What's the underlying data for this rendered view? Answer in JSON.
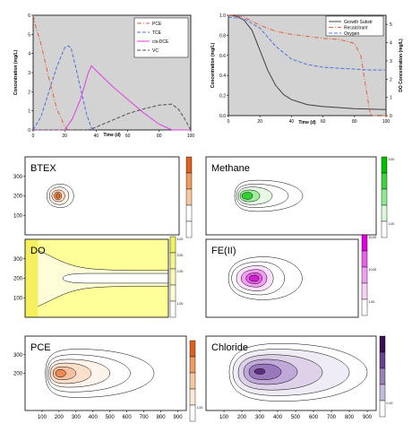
{
  "chart_data": [
    {
      "type": "line",
      "xlabel": "Time (d)",
      "ylabel": "Concentration (mg/L)",
      "xlim": [
        0,
        100
      ],
      "ylim": [
        0,
        6
      ],
      "xticks": [
        "0",
        "20",
        "40",
        "60",
        "80",
        "100"
      ],
      "yticks": [
        "0",
        "1",
        "2",
        "3",
        "4",
        "5",
        "6"
      ],
      "legend_position": "top-right",
      "grid": false,
      "series": [
        {
          "name": "PCE",
          "color": "#e06040",
          "dash": "dashdot",
          "x": [
            0,
            2,
            5,
            10,
            15,
            20,
            22,
            25
          ],
          "y": [
            6.0,
            5.3,
            4.5,
            2.7,
            1.1,
            0.2,
            0.0,
            0.0
          ]
        },
        {
          "name": "TCE",
          "color": "#5070e0",
          "dash": "dashed",
          "x": [
            0,
            5,
            10,
            15,
            20,
            22,
            24,
            27,
            30,
            34,
            37,
            40
          ],
          "y": [
            0.0,
            0.7,
            2.0,
            3.3,
            4.3,
            4.4,
            4.3,
            3.3,
            2.2,
            0.8,
            0.1,
            0.0
          ]
        },
        {
          "name": "cis-DCE",
          "color": "#e040e0",
          "dash": "solid",
          "x": [
            0,
            20,
            25,
            30,
            35,
            37,
            40,
            50,
            60,
            70,
            80,
            88,
            90,
            100
          ],
          "y": [
            0.0,
            0.0,
            0.6,
            1.6,
            3.0,
            3.35,
            3.1,
            2.3,
            1.6,
            0.9,
            0.3,
            0.0,
            0.0,
            0.0
          ]
        },
        {
          "name": "VC",
          "color": "#505050",
          "dash": "dashed",
          "x": [
            0,
            35,
            40,
            50,
            60,
            70,
            80,
            88,
            92,
            96,
            100
          ],
          "y": [
            0.0,
            0.0,
            0.15,
            0.5,
            0.85,
            1.1,
            1.3,
            1.35,
            1.1,
            0.6,
            0.0
          ]
        }
      ]
    },
    {
      "type": "line",
      "xlabel": "Time (d)",
      "ylabel": "Concentration (mg/L)",
      "y2label": "DO Concentration (mg/L)",
      "xlim": [
        0,
        100
      ],
      "ylim": [
        0,
        1.0
      ],
      "y2lim": [
        0,
        5.5
      ],
      "xticks": [
        "0",
        "20",
        "40",
        "60",
        "80",
        "100"
      ],
      "yticks": [
        "0.0",
        "0.2",
        "0.4",
        "0.6",
        "0.8",
        "1.0"
      ],
      "y2ticks": [
        "0",
        "1",
        "2",
        "3",
        "4",
        "5"
      ],
      "legend_position": "top-right",
      "grid": false,
      "series": [
        {
          "name": "Growth Substr",
          "color": "#404040",
          "dash": "solid",
          "x": [
            0,
            5,
            10,
            15,
            20,
            25,
            30,
            35,
            40,
            50,
            60,
            70,
            80,
            90,
            100
          ],
          "y": [
            1.0,
            0.99,
            0.95,
            0.85,
            0.65,
            0.45,
            0.3,
            0.21,
            0.16,
            0.11,
            0.09,
            0.08,
            0.07,
            0.065,
            0.06
          ]
        },
        {
          "name": "Recalcitrant",
          "color": "#e06040",
          "dash": "dashdot",
          "x": [
            0,
            10,
            20,
            30,
            40,
            50,
            60,
            70,
            80,
            84,
            88,
            90,
            92,
            100
          ],
          "y": [
            1.0,
            0.98,
            0.9,
            0.84,
            0.81,
            0.79,
            0.77,
            0.76,
            0.72,
            0.6,
            0.2,
            0.02,
            0.0,
            0.0
          ]
        },
        {
          "name": "Oxygen",
          "color": "#5070e0",
          "dash": "dashed",
          "axis": "right",
          "x": [
            0,
            10,
            20,
            30,
            40,
            50,
            60,
            70,
            80,
            90,
            100
          ],
          "y": [
            5.4,
            5.3,
            4.8,
            3.8,
            3.1,
            2.8,
            2.65,
            2.6,
            2.55,
            2.5,
            2.5
          ]
        }
      ]
    },
    {
      "type": "heatmap",
      "title": "BTEX",
      "colormap": "orange",
      "xlim": [
        0,
        950
      ],
      "ylim": [
        0,
        400
      ],
      "yticks": [
        "100",
        "200",
        "300"
      ],
      "source": [
        200,
        200
      ],
      "contours": [
        {
          "x_range": [
            135,
            300
          ],
          "y_range": [
            140,
            260
          ],
          "level_color": "#ffffff"
        },
        {
          "x_range": [
            150,
            270
          ],
          "y_range": [
            155,
            245
          ],
          "level_color": "#fff1e8"
        },
        {
          "x_range": [
            165,
            245
          ],
          "y_range": [
            170,
            230
          ],
          "level_color": "#ffd8c0"
        },
        {
          "x_range": [
            180,
            225
          ],
          "y_range": [
            180,
            220
          ],
          "level_color": "#f5a070"
        },
        {
          "x_range": [
            190,
            215
          ],
          "y_range": [
            188,
            212
          ],
          "level_color": "#e86a2e"
        }
      ],
      "colorbar_colors": [
        "#e06020",
        "#ee9a60",
        "#f8c8a0",
        "#ffffff",
        "#ffffff"
      ],
      "colorbar_labels": [
        "",
        "",
        "",
        "",
        ""
      ]
    },
    {
      "type": "heatmap",
      "title": "Methane",
      "colormap": "green",
      "xlim": [
        0,
        950
      ],
      "ylim": [
        0,
        400
      ],
      "source": [
        230,
        200
      ],
      "contours": [
        {
          "x_range": [
            160,
            540
          ],
          "y_range": [
            120,
            280
          ],
          "level_color": "#ffffff"
        },
        {
          "x_range": [
            170,
            460
          ],
          "y_range": [
            140,
            260
          ],
          "level_color": "#ffffff"
        },
        {
          "x_range": [
            180,
            370
          ],
          "y_range": [
            155,
            245
          ],
          "level_color": "#e6fae6"
        },
        {
          "x_range": [
            190,
            300
          ],
          "y_range": [
            170,
            230
          ],
          "level_color": "#9ff09f"
        },
        {
          "x_range": [
            200,
            260
          ],
          "y_range": [
            182,
            218
          ],
          "level_color": "#30d030"
        }
      ],
      "colorbar_colors": [
        "#00c000",
        "#40d040",
        "#90e890",
        "#d8f8d8",
        "#ffffff"
      ],
      "colorbar_labels": [
        "3.00",
        "",
        "",
        "",
        "1.00"
      ]
    },
    {
      "type": "heatmap",
      "title": "DO",
      "colormap": "yellow",
      "xlim": [
        0,
        950
      ],
      "ylim": [
        0,
        400
      ],
      "yticks": [
        "100",
        "200",
        "300"
      ],
      "colorbar_colors": [
        "#f0f060",
        "#f4f490",
        "#f8f8b8",
        "#fcfcd8",
        "#ffffff"
      ],
      "colorbar_labels": [
        "4.00",
        "3.00",
        "2.00",
        "",
        "1.00"
      ]
    },
    {
      "type": "heatmap",
      "title": "FE(II)",
      "colormap": "magenta",
      "xlim": [
        0,
        950
      ],
      "ylim": [
        0,
        400
      ],
      "source": [
        300,
        200
      ],
      "contours": [
        {
          "x_range": [
            140,
            600
          ],
          "y_range": [
            90,
            310
          ],
          "level_color": "#ffffff"
        },
        {
          "x_range": [
            160,
            490
          ],
          "y_range": [
            115,
            285
          ],
          "level_color": "#ffffff"
        },
        {
          "x_range": [
            190,
            420
          ],
          "y_range": [
            135,
            265
          ],
          "level_color": "#fbe0fb"
        },
        {
          "x_range": [
            220,
            380
          ],
          "y_range": [
            155,
            245
          ],
          "level_color": "#f3a0f3"
        },
        {
          "x_range": [
            250,
            350
          ],
          "y_range": [
            172,
            228
          ],
          "level_color": "#e860e8"
        },
        {
          "x_range": [
            270,
            330
          ],
          "y_range": [
            184,
            216
          ],
          "level_color": "#d020d0"
        }
      ],
      "colorbar_colors": [
        "#e000e0",
        "#e860e8",
        "#f0a0f0",
        "#f8d0f8",
        "#ffffff"
      ],
      "colorbar_labels": [
        "20.00",
        "",
        "10.00",
        "",
        "1.00"
      ]
    },
    {
      "type": "heatmap",
      "title": "PCE",
      "colormap": "orange",
      "xlim": [
        0,
        950
      ],
      "ylim": [
        0,
        400
      ],
      "yticks": [
        "200",
        "300"
      ],
      "source": [
        200,
        200
      ],
      "contours": [
        {
          "x_range": [
            120,
            760
          ],
          "y_range": [
            70,
            330
          ],
          "level_color": "#ffffff"
        },
        {
          "x_range": [
            130,
            620
          ],
          "y_range": [
            100,
            300
          ],
          "level_color": "#ffffff"
        },
        {
          "x_range": [
            140,
            500
          ],
          "y_range": [
            125,
            275
          ],
          "level_color": "#fff4ec"
        },
        {
          "x_range": [
            150,
            390
          ],
          "y_range": [
            145,
            255
          ],
          "level_color": "#fde0cc"
        },
        {
          "x_range": [
            165,
            300
          ],
          "y_range": [
            165,
            235
          ],
          "level_color": "#f8c0a0"
        },
        {
          "x_range": [
            180,
            240
          ],
          "y_range": [
            180,
            220
          ],
          "level_color": "#ee8a50"
        }
      ],
      "colorbar_colors": [
        "#e06020",
        "#ee9a60",
        "#f8c8a0",
        "#fde8d8",
        "#ffffff"
      ],
      "colorbar_labels": [
        "",
        "",
        "",
        "",
        "1.00"
      ]
    },
    {
      "type": "heatmap",
      "title": "Chloride",
      "colormap": "purple",
      "xlim": [
        0,
        950
      ],
      "ylim": [
        0,
        400
      ],
      "xticks": [
        "100",
        "200",
        "300",
        "400",
        "500",
        "600",
        "700",
        "800",
        "900"
      ],
      "source": [
        300,
        210
      ],
      "contours": [
        {
          "x_range": [
            130,
            900
          ],
          "y_range": [
            50,
            360
          ],
          "level_color": "#ffffff"
        },
        {
          "x_range": [
            150,
            800
          ],
          "y_range": [
            80,
            330
          ],
          "level_color": "#f0ecf5"
        },
        {
          "x_range": [
            180,
            650
          ],
          "y_range": [
            110,
            300
          ],
          "level_color": "#ddd2e8"
        },
        {
          "x_range": [
            210,
            510
          ],
          "y_range": [
            140,
            275
          ],
          "level_color": "#c0a8d8"
        },
        {
          "x_range": [
            240,
            420
          ],
          "y_range": [
            165,
            250
          ],
          "level_color": "#9a78bc"
        },
        {
          "x_range": [
            270,
            330
          ],
          "y_range": [
            195,
            225
          ],
          "level_color": "#5a2e7a"
        }
      ],
      "colorbar_colors": [
        "#3a1050",
        "#6a4090",
        "#9a80b8",
        "#c8b8dc",
        "#ffffff"
      ],
      "colorbar_labels": [
        "",
        "",
        "",
        "",
        "0.10"
      ]
    }
  ]
}
